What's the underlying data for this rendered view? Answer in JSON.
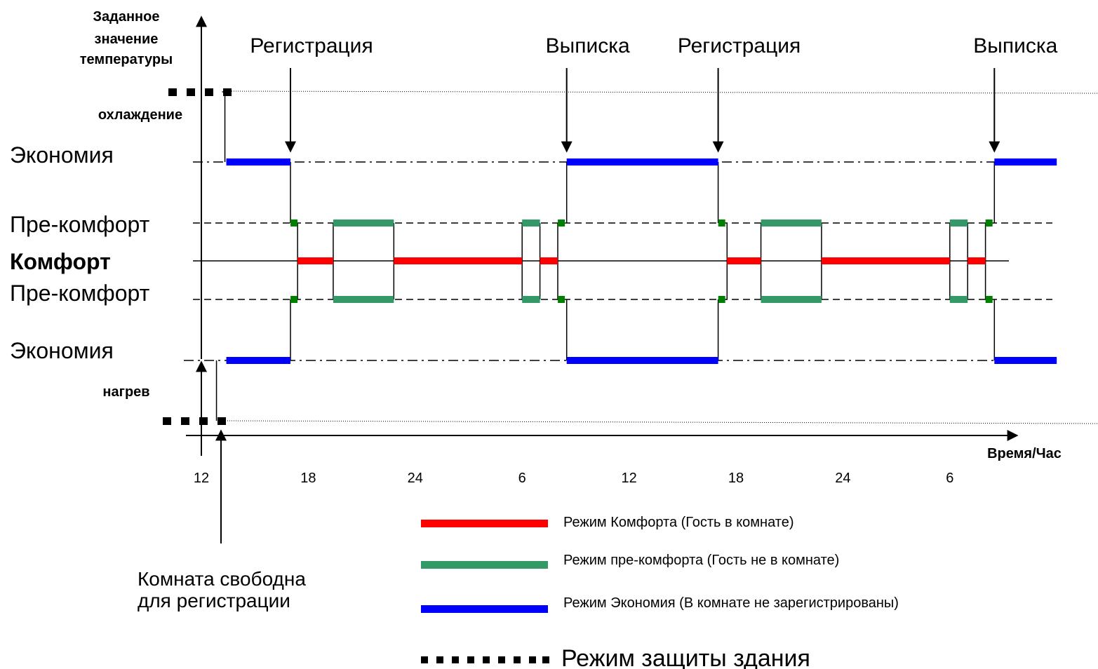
{
  "y_axis": {
    "title_lines": [
      "Заданное",
      "значение",
      "температуры"
    ],
    "cooling_label": "охлаждение",
    "heating_label": "нагрев"
  },
  "x_axis": {
    "title": "Время/Час",
    "ticks": [
      {
        "hour": 12,
        "label": "12"
      },
      {
        "hour": 18,
        "label": "18"
      },
      {
        "hour": 24,
        "label": "24"
      },
      {
        "hour": 30,
        "label": "6"
      },
      {
        "hour": 36,
        "label": "12"
      },
      {
        "hour": 42,
        "label": "18"
      },
      {
        "hour": 48,
        "label": "24"
      },
      {
        "hour": 54,
        "label": "6"
      }
    ]
  },
  "levels": [
    {
      "id": "eco-top",
      "label": "Экономия",
      "bold": false
    },
    {
      "id": "pre-top",
      "label": "Пре-комфорт",
      "bold": false
    },
    {
      "id": "comfort",
      "label": "Комфорт",
      "bold": true
    },
    {
      "id": "pre-bottom",
      "label": "Пре-комфорт",
      "bold": false
    },
    {
      "id": "eco-bottom",
      "label": "Экономия",
      "bold": false
    }
  ],
  "events": [
    {
      "label": "Регистрация",
      "hour": 17.0
    },
    {
      "label": "Выписка",
      "hour": 32.5
    },
    {
      "label": "Регистрация",
      "hour": 41.0
    },
    {
      "label": "Выписка",
      "hour": 56.5
    }
  ],
  "room_free_note": [
    "Комната свободна",
    "для регистрации"
  ],
  "mode_segments": [
    {
      "mode": "protection",
      "from": 10.2,
      "to": 13.4
    },
    {
      "mode": "economy",
      "from": 13.4,
      "to": 17.0
    },
    {
      "mode": "comfort",
      "from": 17.4,
      "to": 19.4
    },
    {
      "mode": "pre-comfort",
      "from": 19.4,
      "to": 22.8
    },
    {
      "mode": "comfort",
      "from": 22.8,
      "to": 30.0
    },
    {
      "mode": "pre-comfort",
      "from": 30.0,
      "to": 31.0
    },
    {
      "mode": "comfort",
      "from": 31.0,
      "to": 32.0
    },
    {
      "mode": "economy",
      "from": 32.5,
      "to": 41.0
    },
    {
      "mode": "comfort",
      "from": 41.5,
      "to": 43.4
    },
    {
      "mode": "pre-comfort",
      "from": 43.4,
      "to": 46.8
    },
    {
      "mode": "comfort",
      "from": 46.8,
      "to": 54.0
    },
    {
      "mode": "pre-comfort",
      "from": 54.0,
      "to": 55.0
    },
    {
      "mode": "comfort",
      "from": 55.0,
      "to": 56.0
    },
    {
      "mode": "economy",
      "from": 56.5,
      "to": 60.0
    }
  ],
  "legend": [
    {
      "mode": "comfort",
      "label": "Режим Комфорта (Гость в комнате)",
      "color": "#ff0000"
    },
    {
      "mode": "pre-comfort",
      "label": "Режим пре-комфорта (Гость не в комнате)",
      "color": "#339966"
    },
    {
      "mode": "economy",
      "label": "Режим Экономия (В комнате не зарегистрированы)",
      "color": "#0000ff"
    },
    {
      "mode": "protection",
      "label": "Режим защиты здания",
      "color": "#000000"
    }
  ],
  "colors": {
    "comfort": "#ff0000",
    "pre_comfort": "#339966",
    "economy": "#0000ff",
    "marker": "#008000",
    "protection": "#000000"
  }
}
